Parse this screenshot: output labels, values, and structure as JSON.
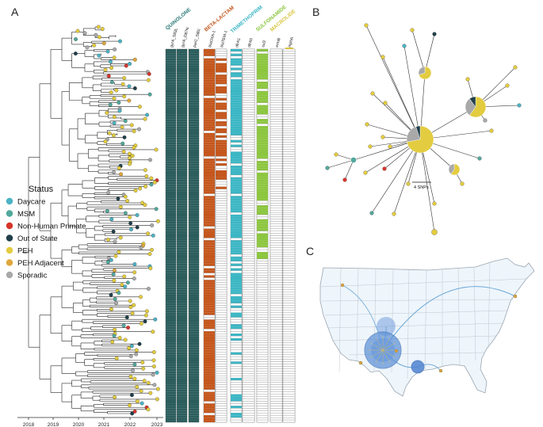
{
  "panels": {
    "a": "A",
    "b": "B",
    "c": "C"
  },
  "legend": {
    "title": "Status",
    "items": [
      {
        "label": "Daycare",
        "color": "#4cb3c4"
      },
      {
        "label": "MSM",
        "color": "#52a89c"
      },
      {
        "label": "Non-Human Primate",
        "color": "#d7342a"
      },
      {
        "label": "Out of State",
        "color": "#1f3f4a"
      },
      {
        "label": "PEH",
        "color": "#e3cc3f"
      },
      {
        "label": "PEH Adjacent",
        "color": "#e0a73a"
      },
      {
        "label": "Sporadic",
        "color": "#a9a9a9"
      }
    ]
  },
  "timeline": {
    "ticks": [
      "2018",
      "2019",
      "2020",
      "2021",
      "2022",
      "2023"
    ]
  },
  "heatmap": {
    "classes": [
      {
        "label": "QUINOLONE",
        "color": "#2f7d7a"
      },
      {
        "label": "BETA-LACTAM",
        "color": "#c4561c"
      },
      {
        "label": "TRIMETHOPRIM",
        "color": "#3bb6c4"
      },
      {
        "label": "SULFONAMIDE",
        "color": "#8cc63f"
      },
      {
        "label": "MACROLIDE",
        "color": "#d8c542"
      }
    ],
    "columns": [
      {
        "label": "gyrA_S83L",
        "fill": "#2b5d5c"
      },
      {
        "label": "gyrA_D87N",
        "fill": "#2b5d5c"
      },
      {
        "label": "parC_S80I",
        "fill": "#2b5d5c"
      },
      {
        "label": "blaOXA-1",
        "fill": "#c4561c"
      },
      {
        "label": "blaTEM-1",
        "fill": "#c4561c"
      },
      {
        "label": "dfrA1",
        "fill": "#3bb6c4"
      },
      {
        "label": "dfrA5",
        "fill": "#3bb6c4"
      },
      {
        "label": "sul2",
        "fill": "#8cc63f"
      },
      {
        "label": "ermB",
        "fill": "#d8c542"
      },
      {
        "label": "mphA",
        "fill": "#d8c542"
      }
    ]
  },
  "network": {
    "scale_label": "4 SNPs"
  }
}
